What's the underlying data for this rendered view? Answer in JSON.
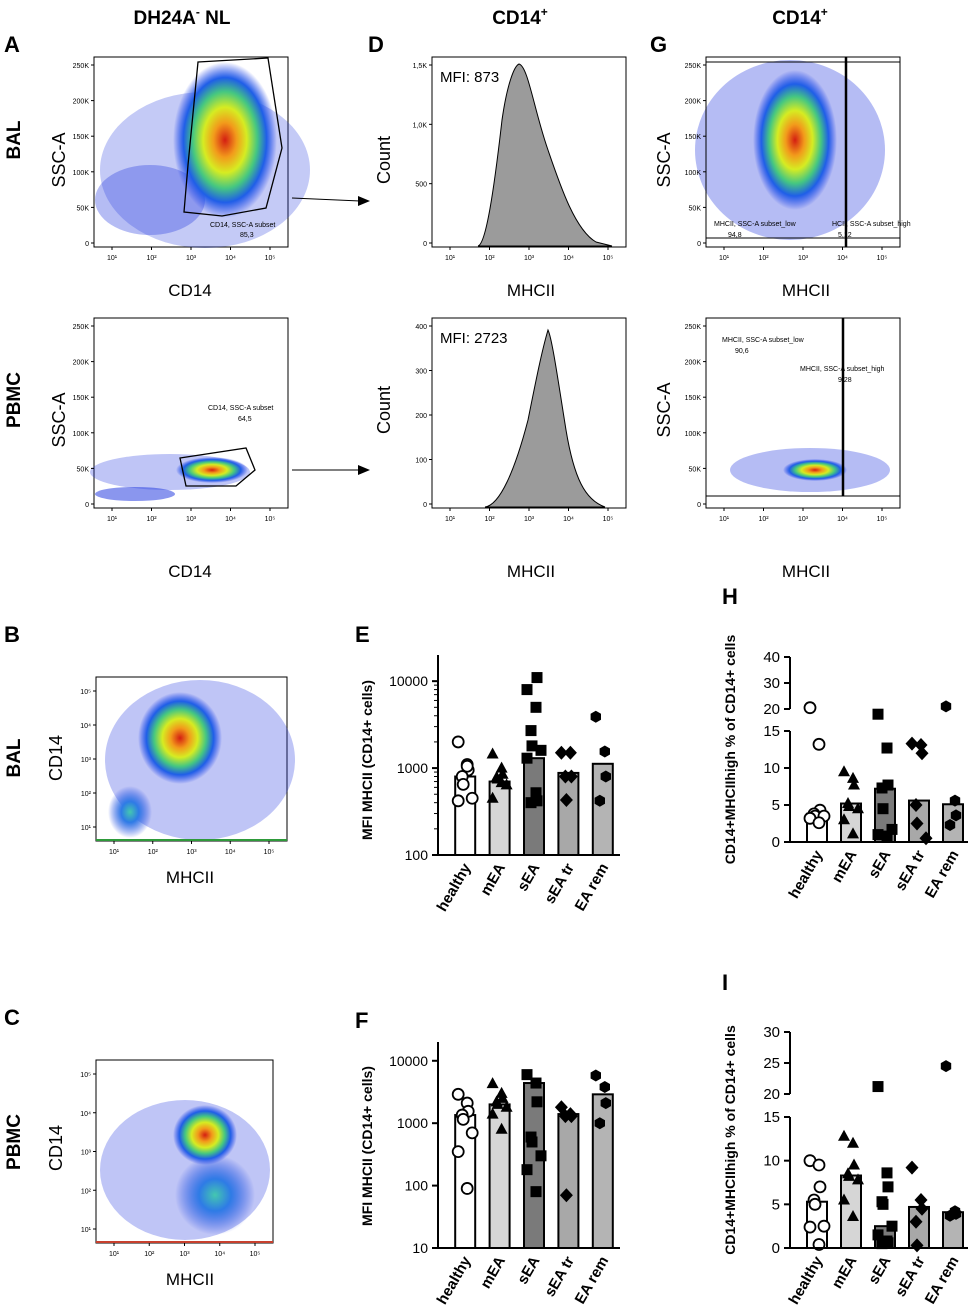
{
  "column_headers": [
    {
      "text": "DH24A",
      "sup": "-",
      "suffix": " NL"
    },
    {
      "text": "CD14",
      "sup": "+",
      "suffix": ""
    },
    {
      "text": "CD14",
      "sup": "+",
      "suffix": ""
    }
  ],
  "panel_letters": [
    "A",
    "D",
    "G",
    "B",
    "E",
    "H",
    "C",
    "F",
    "I"
  ],
  "row_labels": {
    "bal": "BAL",
    "pbmc": "PBMC"
  },
  "log_ticks": [
    "10",
    "1",
    "10",
    "2",
    "10",
    "3",
    "10",
    "4",
    "10",
    "5"
  ],
  "log_tick_labels": [
    "10¹",
    "10²",
    "10³",
    "10⁴",
    "10⁵"
  ],
  "ssc_ticks": [
    "0",
    "50K",
    "100K",
    "150K",
    "200K",
    "250K"
  ],
  "count_ticks_top": [
    "0",
    "500",
    "1,0K",
    "1,5K"
  ],
  "count_ticks_bottom": [
    "0",
    "100",
    "200",
    "300",
    "400"
  ],
  "axis_labels": {
    "ssc": "SSC-A",
    "cd14": "CD14",
    "mhcii": "MHCII",
    "count": "Count"
  },
  "gates": {
    "a_bal": {
      "name": "CD14, SSC-A subset",
      "value": "85,3"
    },
    "a_pbmc": {
      "name": "CD14, SSC-A subset",
      "value": "64,5"
    },
    "g_bal_low": {
      "name": "MHCII, SSC-A subset_low",
      "value": "94,8"
    },
    "g_bal_high": {
      "name": "HCII, SSC-A subset_high",
      "value": "5,12"
    },
    "g_pbmc_low": {
      "name": "MHCII, SSC-A subset_low",
      "value": "90,6"
    },
    "g_pbmc_high": {
      "name": "MHCII, SSC-A subset_high",
      "value": "9,28"
    }
  },
  "mfi": {
    "bal": "MFI: 873",
    "pbmc": "MFI: 2723"
  },
  "chart_data": [
    {
      "panel": "E",
      "type": "bar",
      "scale": "log",
      "ylabel": "MFI MHCII (CD14+ cells)",
      "ylim": [
        100,
        20000
      ],
      "yticks": [
        "100",
        "1000",
        "10000"
      ],
      "categories": [
        "healthy",
        "mEA",
        "sEA",
        "sEA tr",
        "EA rem"
      ],
      "values": [
        800,
        700,
        1300,
        880,
        1120
      ],
      "fills": [
        "#ffffff",
        "#d6d6d6",
        "#7a7a7a",
        "#a8a8a8",
        "#b4b4b4"
      ],
      "markers": [
        "circle",
        "triangle",
        "square",
        "diamond",
        "hexagon"
      ],
      "points": [
        [
          2000,
          1100,
          950,
          800,
          650,
          450,
          420,
          1050
        ],
        [
          1450,
          1000,
          850,
          780,
          750,
          640,
          450,
          680
        ],
        [
          8000,
          5000,
          11000,
          2700,
          1800,
          1600,
          1300,
          520,
          420,
          400
        ],
        [
          1500,
          1500,
          800,
          800,
          430
        ],
        [
          3900,
          1550,
          800,
          420
        ]
      ]
    },
    {
      "panel": "F",
      "type": "bar",
      "scale": "log",
      "ylabel": "MFI MHCII (CD14+ cells)",
      "ylim": [
        10,
        20000
      ],
      "yticks": [
        "10",
        "100",
        "1000",
        "10000"
      ],
      "categories": [
        "healthy",
        "mEA",
        "sEA",
        "sEA tr",
        "EA rem"
      ],
      "values": [
        1350,
        2000,
        4400,
        1400,
        2900
      ],
      "fills": [
        "#ffffff",
        "#d6d6d6",
        "#7a7a7a",
        "#a8a8a8",
        "#b4b4b4"
      ],
      "markers": [
        "circle",
        "triangle",
        "square",
        "diamond",
        "hexagon"
      ],
      "points": [
        [
          2900,
          2100,
          1550,
          1350,
          1150,
          700,
          350,
          90
        ],
        [
          4300,
          3000,
          2500,
          2200,
          2000,
          1800,
          1400,
          800
        ],
        [
          6000,
          4400,
          2200,
          600,
          500,
          300,
          180,
          80
        ],
        [
          1800,
          1400,
          1300,
          1300,
          70
        ],
        [
          5800,
          3800,
          2100,
          1000
        ]
      ]
    },
    {
      "panel": "H",
      "type": "bar",
      "scale": "broken",
      "ylabel": "CD14+MHCIIhigh % of CD14+ cells",
      "ylim": [
        0,
        40
      ],
      "break": [
        15,
        20
      ],
      "yticks_low": [
        "0",
        "5",
        "10",
        "15"
      ],
      "yticks_high": [
        "20",
        "30",
        "40"
      ],
      "categories": [
        "healthy",
        "mEA",
        "sEA",
        "sEA tr",
        "EA rem"
      ],
      "values": [
        3.8,
        5.2,
        7.2,
        5.6,
        5.1
      ],
      "fills": [
        "#ffffff",
        "#d6d6d6",
        "#7a7a7a",
        "#a8a8a8",
        "#b4b4b4"
      ],
      "markers": [
        "circle",
        "triangle",
        "square",
        "diamond",
        "hexagon"
      ],
      "points": [
        [
          20.5,
          13.2,
          4.3,
          3.8,
          3.5,
          3.5,
          3.2,
          2.6
        ],
        [
          9.5,
          8.6,
          7.7,
          5.2,
          4.8,
          4.5,
          3.0,
          1.1
        ],
        [
          18.0,
          12.7,
          7.7,
          7.3,
          4.5,
          1.7,
          1.0,
          0.8
        ],
        [
          13.3,
          13.1,
          12.0,
          5.0,
          2.5,
          0.5
        ],
        [
          21.0,
          5.6,
          3.6,
          2.3
        ]
      ]
    },
    {
      "panel": "I",
      "type": "bar",
      "scale": "broken",
      "ylabel": "CD14+MHCIIhigh % of CD14+ cells",
      "ylim": [
        0,
        30
      ],
      "break": [
        15,
        20
      ],
      "yticks_low": [
        "0",
        "5",
        "10",
        "15"
      ],
      "yticks_high": [
        "20",
        "25",
        "30"
      ],
      "categories": [
        "healthy",
        "mEA",
        "sEA",
        "sEA tr",
        "EA rem"
      ],
      "values": [
        5.3,
        8.3,
        2.5,
        4.7,
        4.1
      ],
      "fills": [
        "#ffffff",
        "#d6d6d6",
        "#7a7a7a",
        "#a8a8a8",
        "#b4b4b4"
      ],
      "markers": [
        "circle",
        "triangle",
        "square",
        "diamond",
        "hexagon"
      ],
      "points": [
        [
          10.0,
          9.5,
          7.0,
          5.5,
          5.0,
          2.5,
          2.4,
          0.4
        ],
        [
          12.8,
          12.0,
          9.5,
          8.5,
          8.2,
          7.8,
          5.5,
          3.6
        ],
        [
          21.2,
          8.6,
          7.0,
          5.3,
          5.0,
          2.5,
          1.5,
          0.8,
          0.6,
          0.5
        ],
        [
          9.2,
          5.5,
          4.5,
          3.0,
          0.3
        ],
        [
          24.5,
          4.2,
          3.9,
          3.7
        ]
      ]
    }
  ]
}
